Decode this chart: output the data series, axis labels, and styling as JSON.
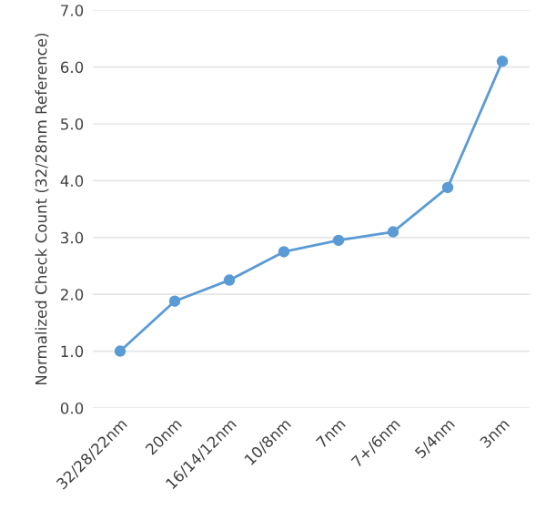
{
  "chart_data": {
    "type": "line",
    "ylabel": "Normalized Check Count (32/28nm Reference)",
    "categories": [
      "32/28/22nm",
      "20nm",
      "16/14/12nm",
      "10/8nm",
      "7nm",
      "7+/6nm",
      "5/4nm",
      "3nm"
    ],
    "series": [
      {
        "color": "#5b9bd5",
        "values": [
          1.0,
          1.88,
          2.25,
          2.75,
          2.95,
          3.1,
          3.88,
          6.1
        ]
      }
    ],
    "ylim": [
      0,
      7
    ],
    "yticks": [
      {
        "value": 0,
        "label": "0.0"
      },
      {
        "value": 1,
        "label": "1.0"
      },
      {
        "value": 2,
        "label": "2.0"
      },
      {
        "value": 3,
        "label": "3.0"
      },
      {
        "value": 4,
        "label": "4.0"
      },
      {
        "value": 5,
        "label": "5.0"
      },
      {
        "value": 6,
        "label": "6.0"
      },
      {
        "value": 7,
        "label": "7.0"
      }
    ],
    "grid": "y",
    "marker": "circle",
    "line_style": "solid"
  }
}
